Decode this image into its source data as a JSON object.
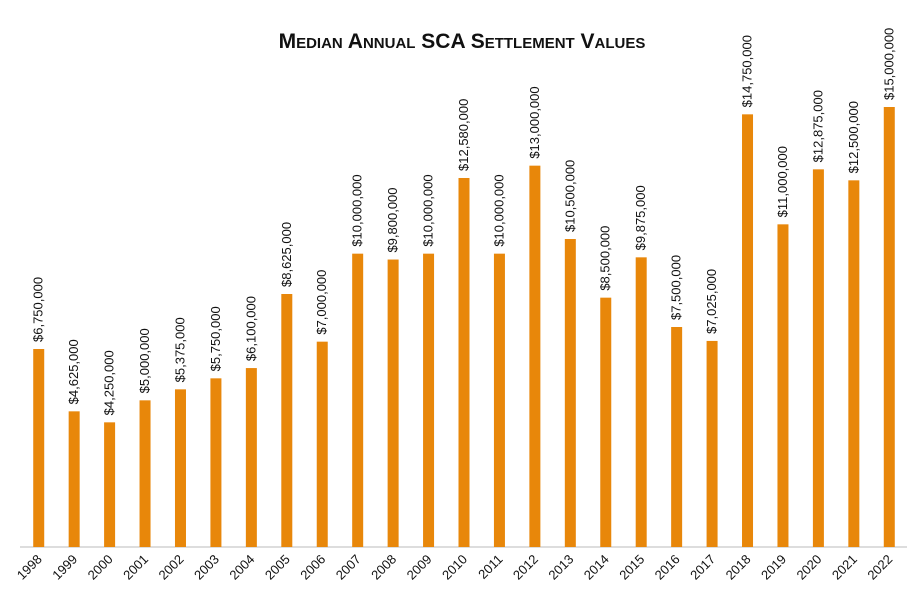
{
  "chart_data": {
    "type": "bar",
    "title": "Median Annual SCA Settlement Values",
    "categories": [
      "1998",
      "1999",
      "2000",
      "2001",
      "2002",
      "2003",
      "2004",
      "2005",
      "2006",
      "2007",
      "2008",
      "2009",
      "2010",
      "2011",
      "2012",
      "2013",
      "2014",
      "2015",
      "2016",
      "2017",
      "2018",
      "2019",
      "2020",
      "2021",
      "2022"
    ],
    "values": [
      6750000,
      4625000,
      4250000,
      5000000,
      5375000,
      5750000,
      6100000,
      8625000,
      7000000,
      10000000,
      9800000,
      10000000,
      12580000,
      10000000,
      13000000,
      10500000,
      8500000,
      9875000,
      7500000,
      7025000,
      14750000,
      11000000,
      12875000,
      12500000,
      15000000
    ],
    "value_labels": [
      "$6,750,000",
      "$4,625,000",
      "$4,250,000",
      "$5,000,000",
      "$5,375,000",
      "$5,750,000",
      "$6,100,000",
      "$8,625,000",
      "$7,000,000",
      "$10,000,000",
      "$9,800,000",
      "$10,000,000",
      "$12,580,000",
      "$10,000,000",
      "$13,000,000",
      "$10,500,000",
      "$8,500,000",
      "$9,875,000",
      "$7,500,000",
      "$7,025,000",
      "$14,750,000",
      "$11,000,000",
      "$12,875,000",
      "$12,500,000",
      "$15,000,000"
    ],
    "color": "#e8870a"
  }
}
